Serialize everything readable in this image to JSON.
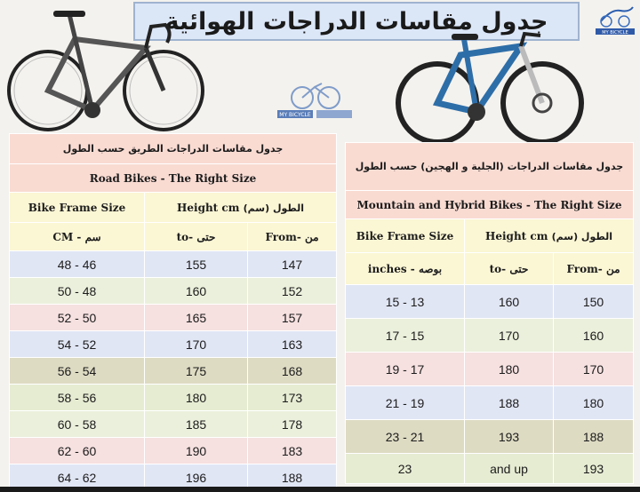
{
  "title": "جدول مقاسات الدراجات الهوائية",
  "logo_text": "MY BICYCLE",
  "colors": {
    "pink": "#f9dbd2",
    "yellow": "#fbf6d4",
    "lightpink": "#f6e5e6",
    "lightblue": "#e1e6f5",
    "tan": "#dedbc3",
    "lightgreen": "#ebf0dc",
    "green": "#e6ecd2"
  },
  "road": {
    "arabic_header": "جدول مقاسات الدراجات الطريق حسب الطول",
    "title": "Road Bikes - The Right Size",
    "col_frame": "Bike Frame Size",
    "col_height_en": "Height  cm",
    "col_height_ar": "(سم) الطول",
    "cm_label": "CM  -  سم",
    "to_label": "to- حتى",
    "from_label": "From- من",
    "rows": [
      {
        "size": "48 - 46",
        "to": "155",
        "from": "147"
      },
      {
        "size": "50 - 48",
        "to": "160",
        "from": "152"
      },
      {
        "size": "52 - 50",
        "to": "165",
        "from": "157"
      },
      {
        "size": "54 - 52",
        "to": "170",
        "from": "163"
      },
      {
        "size": "56 - 54",
        "to": "175",
        "from": "168"
      },
      {
        "size": "58 - 56",
        "to": "180",
        "from": "173"
      },
      {
        "size": "60 - 58",
        "to": "185",
        "from": "178"
      },
      {
        "size": "62 - 60",
        "to": "190",
        "from": "183"
      },
      {
        "size": "64 - 62",
        "to": "196",
        "from": "188"
      }
    ]
  },
  "mtb": {
    "arabic_header": "جدول مقاسات الدراجات (الجلية و الهجين) حسب الطول",
    "title": "Mountain and Hybrid Bikes - The Right Size",
    "col_frame": "Bike Frame Size",
    "col_height_en": "Height  cm",
    "col_height_ar": "(سم) الطول",
    "inches_label": "inches  -  بوصه",
    "to_label": "to- حتى",
    "from_label": "From- من",
    "rows": [
      {
        "size": "15 - 13",
        "to": "160",
        "from": "150"
      },
      {
        "size": "17 - 15",
        "to": "170",
        "from": "160"
      },
      {
        "size": "19 - 17",
        "to": "180",
        "from": "170"
      },
      {
        "size": "21 - 19",
        "to": "188",
        "from": "180"
      },
      {
        "size": "23 - 21",
        "to": "193",
        "from": "188"
      },
      {
        "size": "23",
        "to": "and up",
        "from": "193"
      }
    ]
  }
}
